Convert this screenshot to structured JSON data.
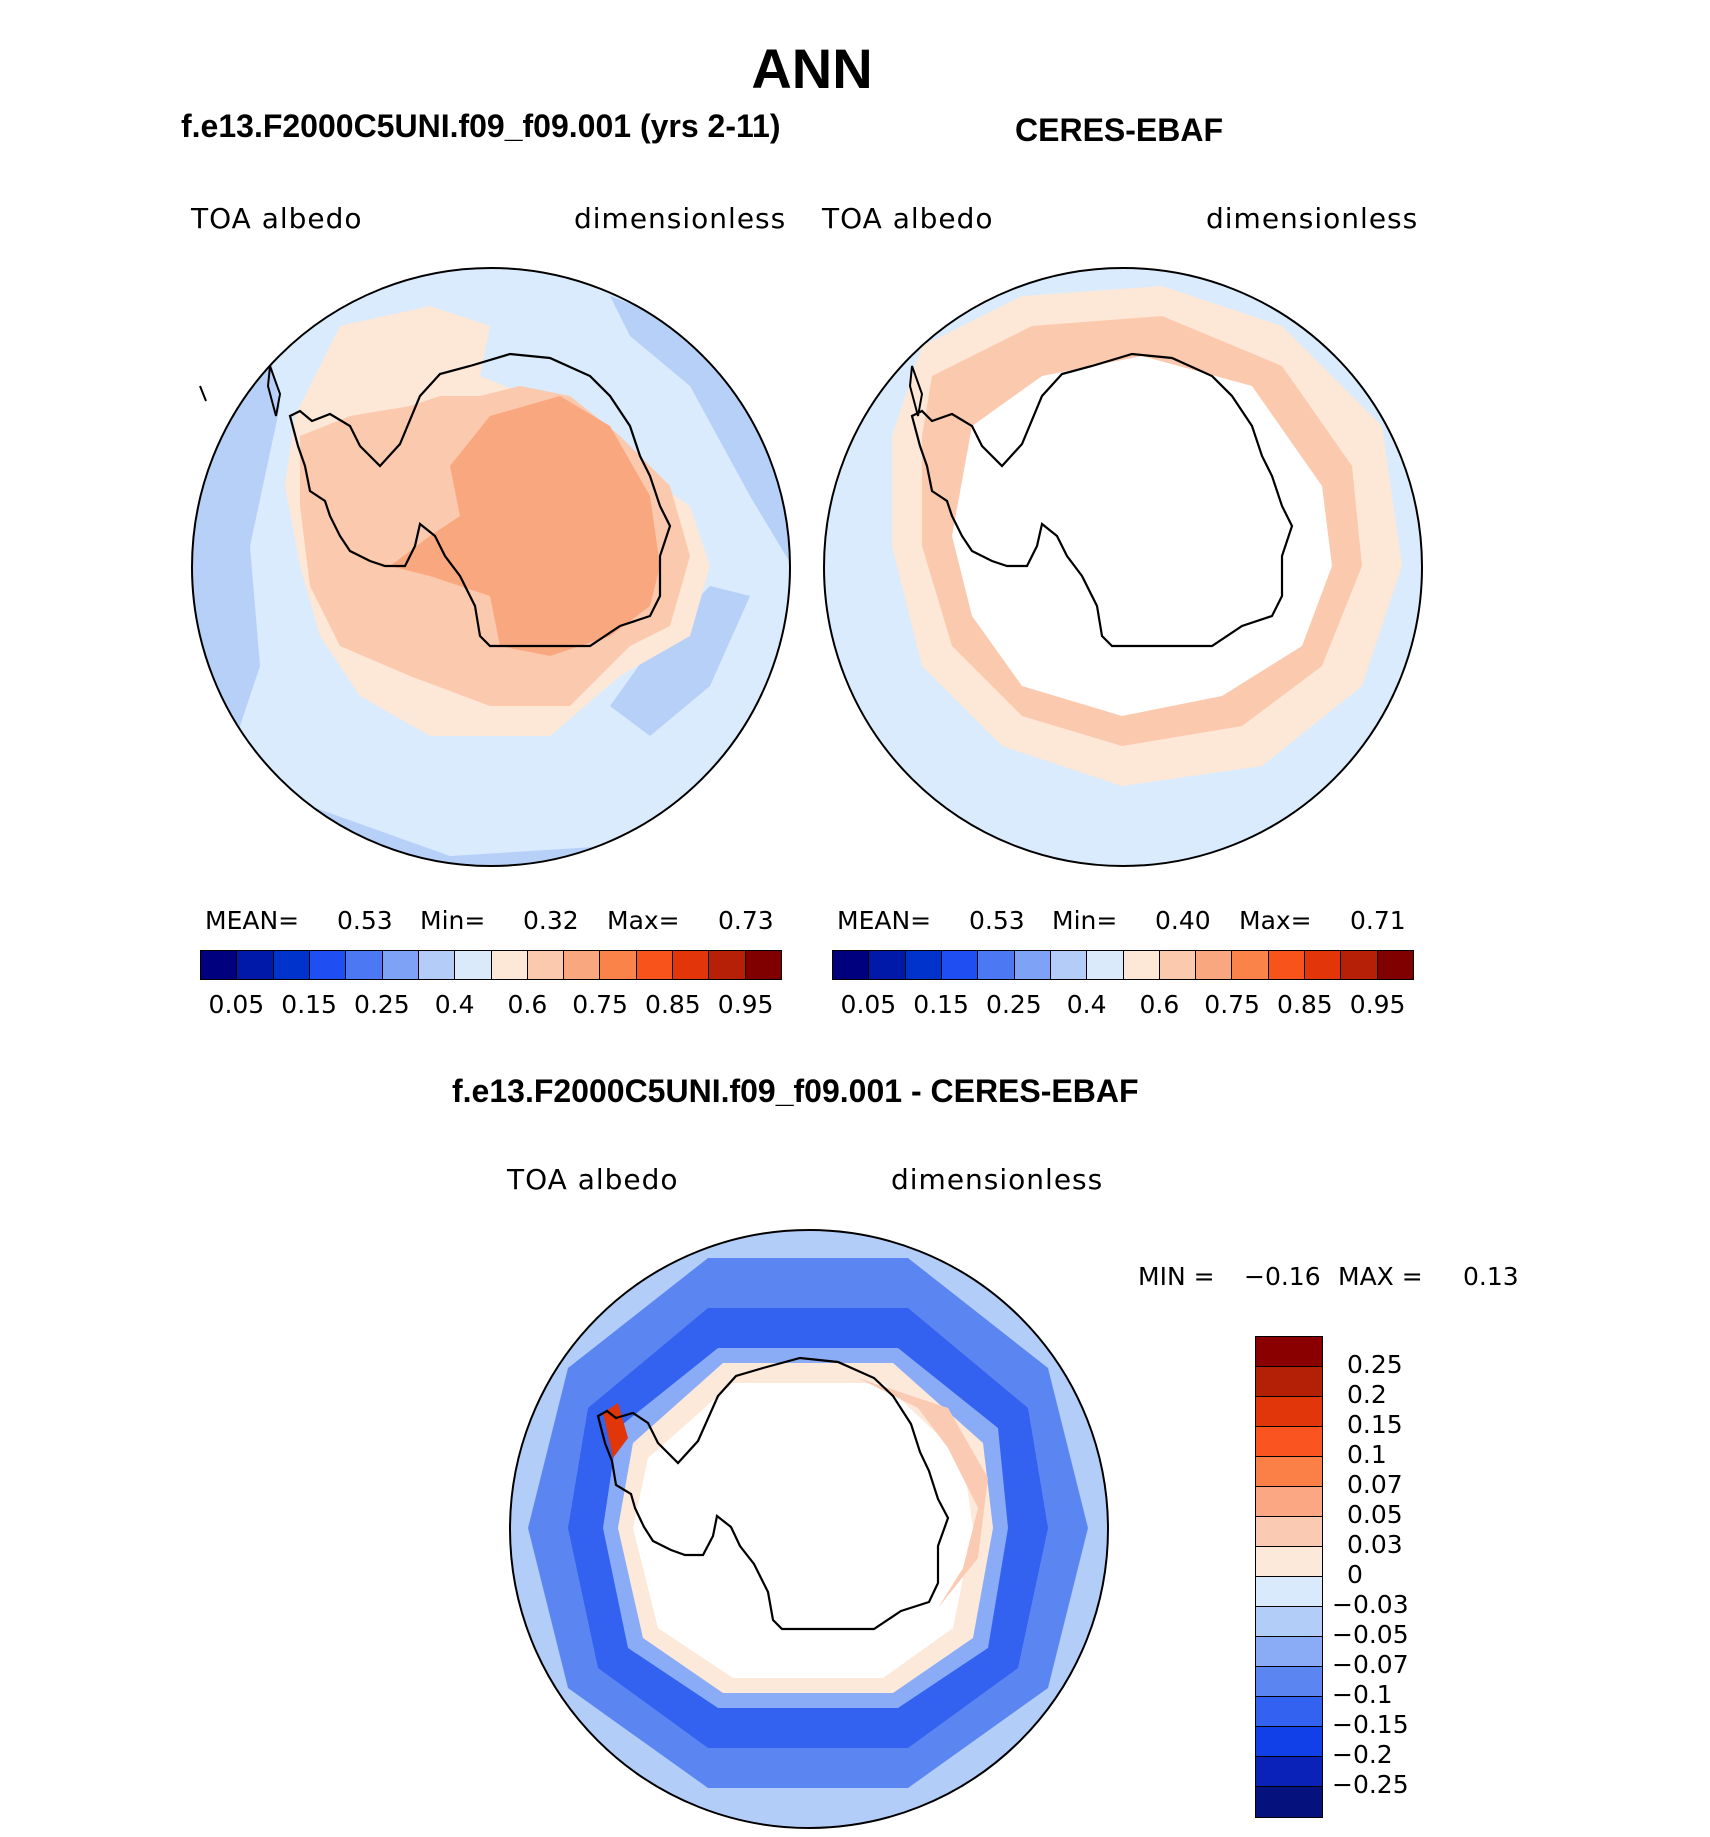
{
  "season": "ANN",
  "panels": {
    "model": {
      "case_title": "f.e13.F2000C5UNI.f09_f09.001 (yrs 2-11)",
      "variable": "TOA albedo",
      "units": "dimensionless",
      "stats": {
        "mean_label": "MEAN=",
        "mean": "0.53",
        "min_label": "Min=",
        "min": "0.32",
        "max_label": "Max=",
        "max": "0.73"
      }
    },
    "obs": {
      "case_title": "CERES-EBAF",
      "variable": "TOA albedo",
      "units": "dimensionless",
      "stats": {
        "mean_label": "MEAN=",
        "mean": "0.53",
        "min_label": "Min=",
        "min": "0.40",
        "max_label": "Max=",
        "max": "0.71"
      }
    },
    "diff": {
      "case_title": "f.e13.F2000C5UNI.f09_f09.001 - CERES-EBAF",
      "variable": "TOA albedo",
      "units": "dimensionless",
      "stats": {
        "min_label": "MIN =",
        "min": "−0.16",
        "max_label": "MAX =",
        "max": "0.13"
      }
    }
  },
  "colorbar_abs": {
    "tick_labels": [
      "0.05",
      "0.15",
      "0.25",
      "0.4",
      "0.6",
      "0.75",
      "0.85",
      "0.95"
    ],
    "colors": [
      "#00007f",
      "#0019a8",
      "#0033cc",
      "#1f4ff2",
      "#4c78f4",
      "#7ea2f5",
      "#b3ccf8",
      "#dbeafb",
      "#fde8d7",
      "#fbc9ad",
      "#f9a77f",
      "#f98348",
      "#f9531c",
      "#e3350a",
      "#b62007",
      "#800000"
    ]
  },
  "colorbar_diff": {
    "labels": [
      "0.25",
      "0.2",
      "0.15",
      "0.1",
      "0.07",
      "0.05",
      "0.03",
      "0",
      "−0.03",
      "−0.05",
      "−0.07",
      "−0.1",
      "−0.15",
      "−0.2",
      "−0.25"
    ],
    "colors": [
      "#8a0000",
      "#b42006",
      "#e0360a",
      "#fa5521",
      "#fb8048",
      "#fba783",
      "#fbcab2",
      "#fde9da",
      "#d8eafc",
      "#b3cdf9",
      "#8aacf6",
      "#5b86f2",
      "#3262ef",
      "#1240e8",
      "#0a22b8",
      "#05127e"
    ]
  }
}
